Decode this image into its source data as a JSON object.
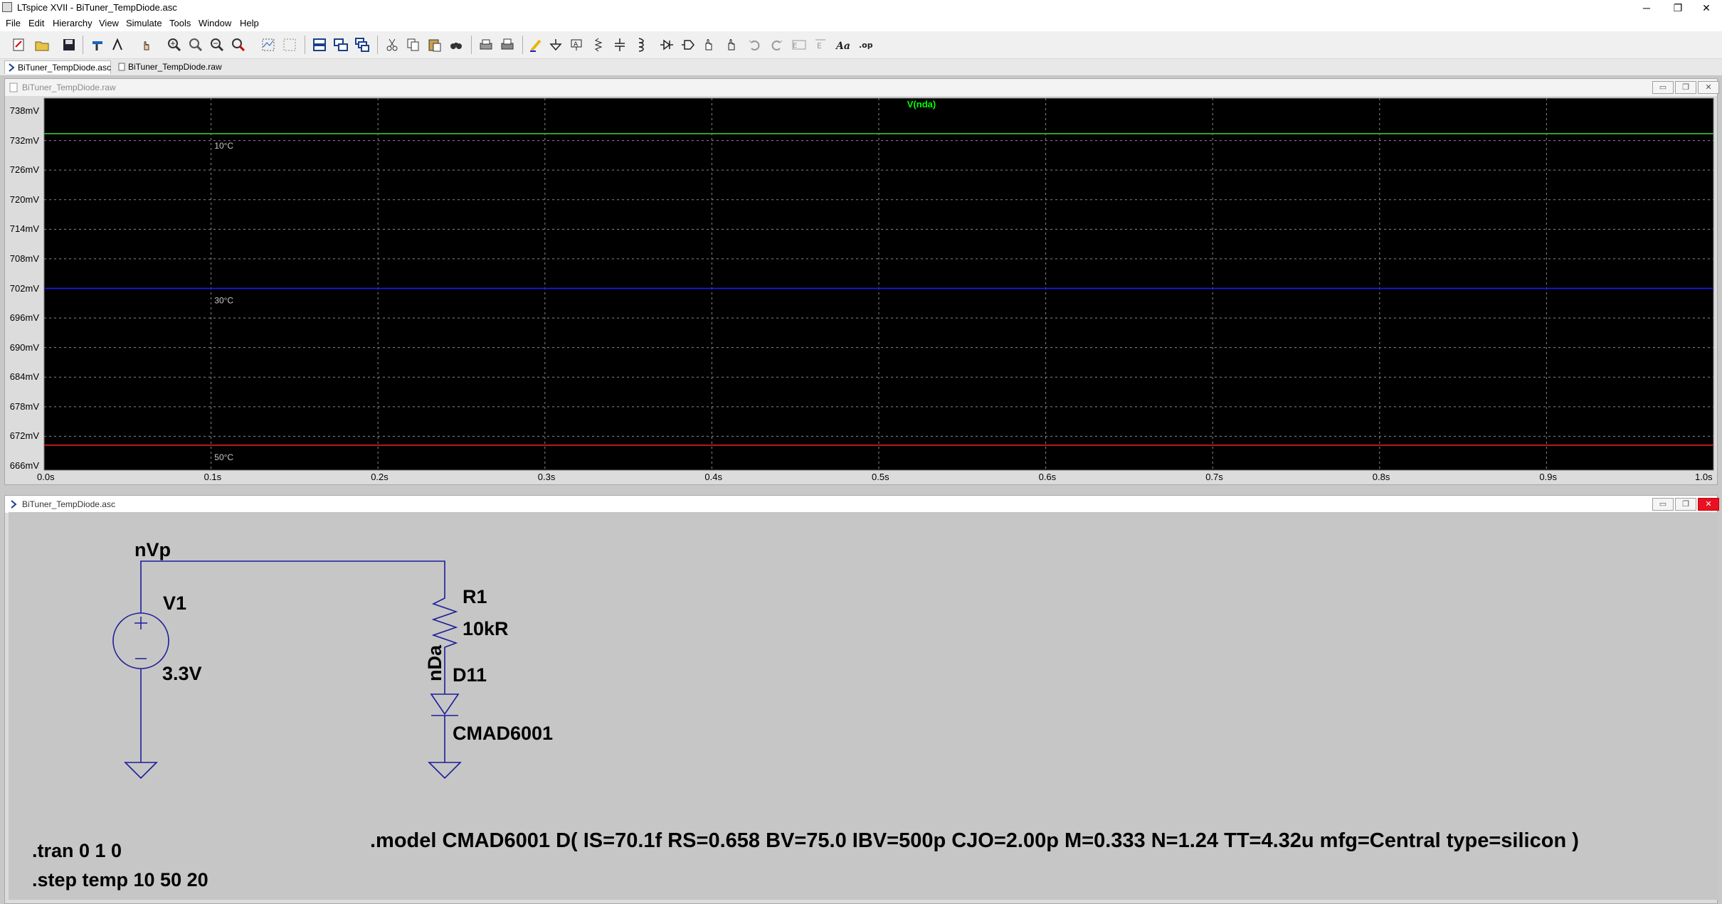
{
  "window": {
    "title": "LTspice XVII - BiTuner_TempDiode.asc",
    "controls": {
      "minimize": "─",
      "restore": "❐",
      "close": "✕"
    }
  },
  "menu": [
    "File",
    "Edit",
    "Hierarchy",
    "View",
    "Simulate",
    "Tools",
    "Window",
    "Help"
  ],
  "toolbar_icons": [
    "new-schematic-icon",
    "open-file-icon",
    "save-icon",
    "control-panel-icon",
    "run-icon",
    "halt-icon",
    "zoom-in-icon",
    "zoom-area-icon",
    "zoom-out-icon",
    "zoom-fit-icon",
    "autorange-icon",
    "plot-settings-icon",
    "tile-horizontal-icon",
    "tile-vertical-icon",
    "cascade-icon",
    "cut-icon",
    "copy-icon",
    "paste-icon",
    "find-icon",
    "print-icon",
    "print-preview-icon",
    "draw-wire-icon",
    "ground-icon",
    "label-net-icon",
    "resistor-icon",
    "capacitor-icon",
    "inductor-icon",
    "diode-icon",
    "component-icon",
    "move-icon",
    "drag-icon",
    "undo-icon",
    "redo-icon",
    "rotate-icon",
    "mirror-icon",
    "text-icon",
    "spice-directive-icon"
  ],
  "tabs": [
    {
      "label": "BiTuner_TempDiode.asc",
      "active": true
    },
    {
      "label": "BiTuner_TempDiode.raw",
      "active": false
    }
  ],
  "waveform": {
    "title": "BiTuner_TempDiode.raw",
    "controls": {
      "minimize": "▭",
      "restore": "❐",
      "close": "✕"
    }
  },
  "chart_data": {
    "type": "line",
    "title": "V(nda)",
    "xlabel": "",
    "ylabel": "",
    "x_ticks": [
      "0.0s",
      "0.1s",
      "0.2s",
      "0.3s",
      "0.4s",
      "0.5s",
      "0.6s",
      "0.7s",
      "0.8s",
      "0.9s",
      "1.0s"
    ],
    "y_ticks": [
      "738mV",
      "732mV",
      "726mV",
      "720mV",
      "714mV",
      "708mV",
      "702mV",
      "696mV",
      "690mV",
      "684mV",
      "678mV",
      "672mV",
      "666mV"
    ],
    "xlim": [
      0,
      1
    ],
    "ylim": [
      666,
      738
    ],
    "grid": true,
    "series": [
      {
        "name": "10°C",
        "color": "#2db82d",
        "x": [
          0,
          1
        ],
        "y": [
          733.4,
          733.4
        ]
      },
      {
        "name": "30°C",
        "color": "#1a1ae6",
        "x": [
          0,
          1
        ],
        "y": [
          702.0,
          702.0
        ]
      },
      {
        "name": "50°C",
        "color": "#d41b1b",
        "x": [
          0,
          1
        ],
        "y": [
          670.2,
          670.2
        ]
      }
    ],
    "title_color": "#00ff00"
  },
  "schematic": {
    "title": "BiTuner_TempDiode.asc",
    "controls": {
      "minimize": "▭",
      "restore": "❐",
      "close": "✕"
    },
    "net_vp": "nVp",
    "net_da": "nDa",
    "v1_name": "V1",
    "v1_value": "3.3V",
    "r1_name": "R1",
    "r1_value": "10kR",
    "d11_name": "D11",
    "d11_model": "CMAD6001",
    "directive_tran": ".tran 0 1 0",
    "directive_step": ".step temp 10 50 20",
    "directive_model": ".model CMAD6001 D( IS=70.1f RS=0.658 BV=75.0 IBV=500p CJO=2.00p M=0.333 N=1.24 TT=4.32u mfg=Central type=silicon )",
    "wire_color": "#1d1d9a"
  }
}
